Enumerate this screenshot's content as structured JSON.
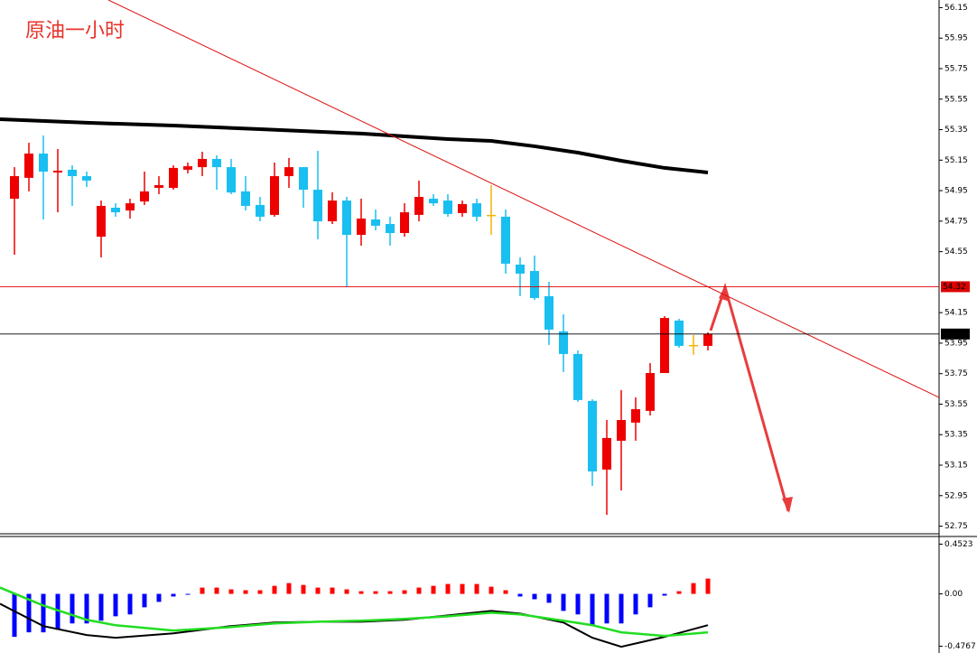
{
  "chart_data": [
    {
      "type": "candlestick",
      "title": "原油一小时",
      "up_color": "#ee0000",
      "down_color": "#18bff0",
      "doji_color": "#f0b400",
      "open": [
        54.897,
        55.034,
        55.193,
        55.069,
        55.087,
        55.045,
        54.648,
        54.838,
        54.82,
        54.879,
        54.968,
        54.968,
        55.087,
        55.104,
        55.158,
        55.104,
        54.945,
        54.856,
        54.791,
        55.045,
        55.104,
        54.956,
        54.749,
        54.885,
        54.66,
        54.761,
        54.731,
        54.672,
        54.791,
        54.897,
        54.885,
        54.803,
        54.867,
        54.791,
        54.779,
        54.465,
        54.423,
        54.258,
        54.027,
        53.879,
        53.571,
        53.121,
        53.31,
        53.429,
        53.506,
        53.754,
        54.098,
        53.938,
        53.932
      ],
      "high": [
        55.104,
        55.264,
        55.312,
        55.223,
        55.116,
        55.075,
        54.885,
        54.867,
        54.897,
        55.075,
        55.045,
        55.116,
        55.134,
        55.205,
        55.181,
        55.158,
        55.045,
        54.909,
        55.134,
        55.164,
        55.104,
        55.211,
        54.939,
        54.909,
        54.897,
        54.826,
        54.779,
        54.867,
        55.016,
        54.927,
        54.927,
        54.885,
        54.897,
        54.986,
        54.826,
        54.512,
        54.524,
        54.352,
        54.139,
        53.902,
        53.582,
        53.446,
        53.642,
        53.594,
        53.819,
        54.127,
        54.11,
        54.003,
        54.021
      ],
      "low": [
        54.53,
        54.945,
        54.761,
        54.808,
        54.85,
        54.974,
        54.512,
        54.779,
        54.767,
        54.856,
        54.927,
        54.956,
        55.063,
        55.045,
        54.956,
        54.927,
        54.82,
        54.749,
        54.779,
        54.968,
        54.838,
        54.631,
        54.731,
        54.317,
        54.589,
        54.69,
        54.589,
        54.648,
        54.749,
        54.85,
        54.779,
        54.779,
        54.749,
        54.66,
        54.406,
        54.258,
        54.234,
        53.938,
        53.76,
        53.565,
        53.014,
        52.824,
        52.984,
        53.31,
        53.476,
        53.754,
        53.92,
        53.873,
        53.902
      ],
      "close": [
        55.045,
        55.193,
        55.075,
        55.081,
        55.045,
        55.016,
        54.85,
        54.808,
        54.867,
        54.945,
        54.986,
        55.099,
        55.11,
        55.158,
        55.104,
        54.938,
        54.85,
        54.779,
        55.045,
        55.104,
        54.956,
        54.749,
        54.885,
        54.66,
        54.767,
        54.72,
        54.672,
        54.808,
        54.909,
        54.867,
        54.797,
        54.862,
        54.779,
        54.791,
        54.471,
        54.406,
        54.246,
        54.039,
        53.879,
        53.577,
        53.109,
        53.328,
        53.446,
        53.517,
        53.754,
        54.115,
        53.932,
        53.938,
        54.009
      ],
      "series": [
        {
          "type": "line",
          "color": "#000000",
          "x": [
            -1,
            5,
            11,
            17,
            24,
            30,
            33,
            36,
            39,
            42,
            45,
            48
          ],
          "values": [
            55.418,
            55.395,
            55.377,
            55.353,
            55.324,
            55.288,
            55.276,
            55.241,
            55.199,
            55.146,
            55.099,
            55.069
          ]
        },
        {
          "type": "line",
          "color": "#dd1111",
          "x": [
            6.5,
            64
          ],
          "values": [
            56.2,
            53.594
          ]
        }
      ],
      "hlines": [
        {
          "value": 54.32,
          "color": "#dd0000"
        },
        {
          "value": 54.01,
          "color": "#000000"
        }
      ],
      "ylim": [
        52.7,
        56.2
      ],
      "yticks": [
        56.15,
        55.95,
        55.75,
        55.55,
        55.35,
        55.15,
        54.95,
        54.75,
        54.55,
        54.15,
        53.95,
        53.75,
        53.55,
        53.35,
        53.15,
        52.95,
        52.75
      ]
    },
    {
      "type": "bar",
      "up_color": "#ff0000",
      "down_color": "#0000ff",
      "values": [
        -0.391,
        -0.35,
        -0.35,
        -0.326,
        -0.269,
        -0.269,
        -0.244,
        -0.204,
        -0.187,
        -0.122,
        -0.073,
        -0.024,
        -0.005,
        0.057,
        0.057,
        0.041,
        0.033,
        0.033,
        0.073,
        0.098,
        0.081,
        0.057,
        0.057,
        0.041,
        0.024,
        0.024,
        0.024,
        0.033,
        0.057,
        0.073,
        0.09,
        0.09,
        0.09,
        0.065,
        0.033,
        -0.024,
        -0.049,
        -0.081,
        -0.155,
        -0.187,
        -0.285,
        -0.269,
        -0.269,
        -0.187,
        -0.122,
        -0.016,
        0.024,
        0.098,
        0.139
      ],
      "series": [
        {
          "type": "line",
          "color": "#000000",
          "x": [
            -1,
            2,
            5,
            7,
            11,
            15,
            18,
            21,
            24,
            27,
            30,
            33,
            35,
            38,
            40,
            42,
            45,
            48
          ],
          "values": [
            -0.09,
            -0.293,
            -0.375,
            -0.399,
            -0.359,
            -0.293,
            -0.261,
            -0.253,
            -0.253,
            -0.236,
            -0.196,
            -0.155,
            -0.179,
            -0.261,
            -0.399,
            -0.481,
            -0.391,
            -0.285
          ]
        },
        {
          "type": "line",
          "color": "#22dd22",
          "x": [
            -1,
            2,
            5,
            7,
            11,
            15,
            18,
            21,
            24,
            27,
            30,
            33,
            35,
            38,
            40,
            42,
            45,
            48
          ],
          "values": [
            0.057,
            -0.106,
            -0.236,
            -0.285,
            -0.334,
            -0.302,
            -0.269,
            -0.253,
            -0.244,
            -0.228,
            -0.204,
            -0.171,
            -0.187,
            -0.244,
            -0.285,
            -0.35,
            -0.383,
            -0.35
          ]
        }
      ],
      "ylim": [
        -0.538,
        0.522
      ],
      "yticks": [
        0.4523,
        {
          "value": 0,
          "label": "0.00"
        },
        -0.4767
      ]
    }
  ]
}
